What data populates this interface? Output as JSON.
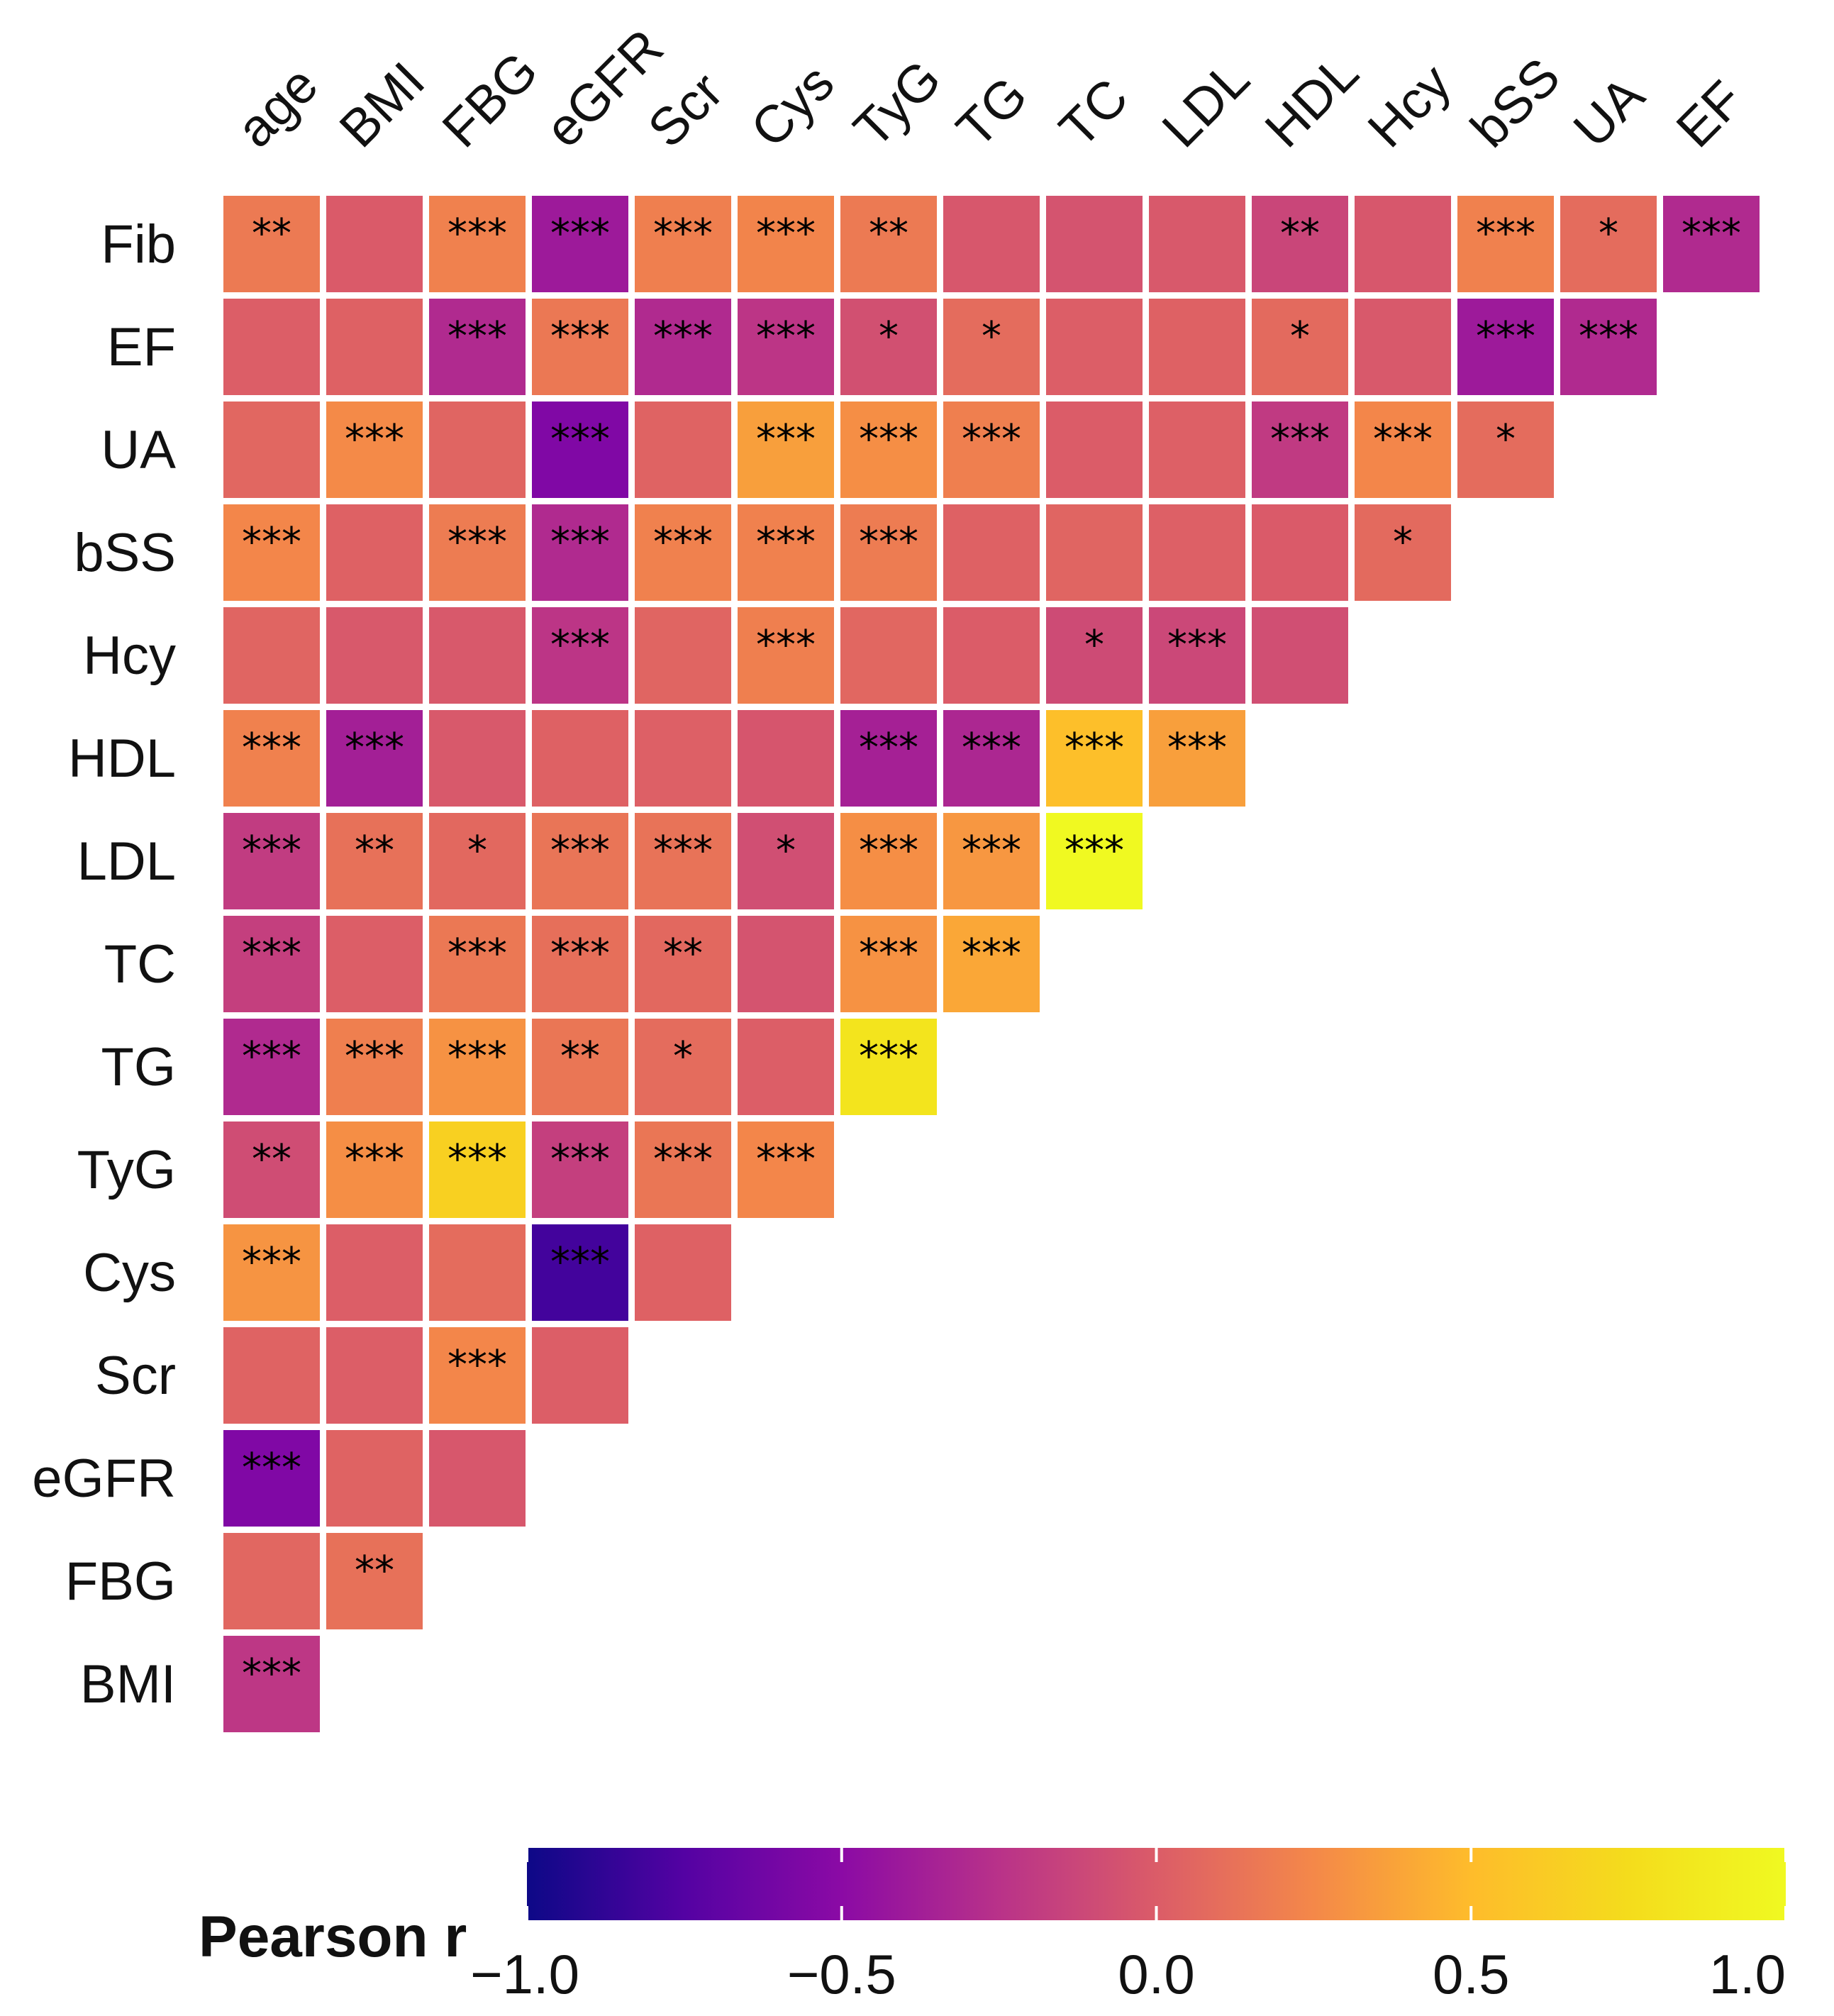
{
  "chart_data": {
    "type": "heatmap",
    "title": "",
    "x_labels": [
      "age",
      "BMI",
      "FBG",
      "eGFR",
      "Scr",
      "Cys",
      "TyG",
      "TG",
      "TC",
      "LDL",
      "HDL",
      "Hcy",
      "bSS",
      "UA",
      "EF"
    ],
    "y_labels": [
      "Fib",
      "EF",
      "UA",
      "bSS",
      "Hcy",
      "HDL",
      "LDL",
      "TC",
      "TG",
      "TyG",
      "Cys",
      "Scr",
      "eGFR",
      "FBG",
      "BMI"
    ],
    "values": [
      [
        0.17,
        -0.01,
        0.21,
        -0.4,
        0.2,
        0.23,
        0.17,
        -0.03,
        -0.05,
        -0.02,
        -0.13,
        -0.03,
        0.21,
        0.09,
        -0.3
      ],
      [
        0.01,
        0.03,
        -0.3,
        0.16,
        -0.3,
        -0.23,
        -0.07,
        0.09,
        0.01,
        0.03,
        0.08,
        -0.02,
        -0.4,
        -0.3,
        null
      ],
      [
        0.06,
        0.26,
        0.05,
        -0.55,
        0.04,
        0.36,
        0.28,
        0.2,
        0.0,
        0.02,
        -0.2,
        0.24,
        0.09,
        null,
        null
      ],
      [
        0.24,
        0.03,
        0.18,
        -0.3,
        0.21,
        0.21,
        0.18,
        0.03,
        0.05,
        0.02,
        -0.01,
        0.08,
        null,
        null,
        null
      ],
      [
        0.05,
        -0.02,
        -0.02,
        -0.23,
        0.05,
        0.2,
        0.06,
        0.0,
        -0.1,
        -0.12,
        -0.08,
        null,
        null,
        null,
        null
      ],
      [
        0.21,
        -0.37,
        -0.02,
        0.03,
        0.02,
        -0.04,
        -0.36,
        -0.32,
        0.52,
        0.36,
        null,
        null,
        null,
        null,
        null
      ],
      [
        -0.19,
        0.12,
        0.07,
        0.14,
        0.13,
        -0.08,
        0.28,
        0.32,
        1.0,
        null,
        null,
        null,
        null,
        null,
        null
      ],
      [
        -0.17,
        0.01,
        0.16,
        0.11,
        0.07,
        -0.05,
        0.3,
        0.4,
        null,
        null,
        null,
        null,
        null,
        null,
        null
      ],
      [
        -0.3,
        0.2,
        0.3,
        0.15,
        0.09,
        0.01,
        0.82,
        null,
        null,
        null,
        null,
        null,
        null,
        null,
        null
      ],
      [
        -0.09,
        0.28,
        0.66,
        -0.17,
        0.15,
        0.24,
        null,
        null,
        null,
        null,
        null,
        null,
        null,
        null,
        null
      ],
      [
        0.31,
        0.01,
        0.09,
        -0.81,
        0.03,
        null,
        null,
        null,
        null,
        null,
        null,
        null,
        null,
        null,
        null
      ],
      [
        0.04,
        0.01,
        0.24,
        0.01,
        null,
        null,
        null,
        null,
        null,
        null,
        null,
        null,
        null,
        null,
        null
      ],
      [
        -0.55,
        0.04,
        -0.03,
        null,
        null,
        null,
        null,
        null,
        null,
        null,
        null,
        null,
        null,
        null,
        null
      ],
      [
        0.06,
        0.12,
        null,
        null,
        null,
        null,
        null,
        null,
        null,
        null,
        null,
        null,
        null,
        null,
        null
      ],
      [
        -0.22,
        null,
        null,
        null,
        null,
        null,
        null,
        null,
        null,
        null,
        null,
        null,
        null,
        null,
        null
      ]
    ],
    "significance": [
      [
        "**",
        "",
        "***",
        "***",
        "***",
        "***",
        "**",
        "",
        "",
        "",
        "**",
        "",
        "***",
        "*",
        "***"
      ],
      [
        "",
        "",
        "***",
        "***",
        "***",
        "***",
        "*",
        "*",
        "",
        "",
        "*",
        "",
        "***",
        "***",
        null
      ],
      [
        "",
        "***",
        "",
        "***",
        "",
        "***",
        "***",
        "***",
        "",
        "",
        "***",
        "***",
        "*",
        null,
        null
      ],
      [
        "***",
        "",
        "***",
        "***",
        "***",
        "***",
        "***",
        "",
        "",
        "",
        "",
        "*",
        null,
        null,
        null
      ],
      [
        "",
        "",
        "",
        "***",
        "",
        "***",
        "",
        "",
        "*",
        "***",
        "",
        null,
        null,
        null,
        null
      ],
      [
        "***",
        "***",
        "",
        "",
        "",
        "",
        "***",
        "***",
        "***",
        "***",
        null,
        null,
        null,
        null,
        null
      ],
      [
        "***",
        "**",
        "*",
        "***",
        "***",
        "*",
        "***",
        "***",
        "***",
        null,
        null,
        null,
        null,
        null,
        null
      ],
      [
        "***",
        "",
        "***",
        "***",
        "**",
        "",
        "***",
        "***",
        null,
        null,
        null,
        null,
        null,
        null,
        null
      ],
      [
        "***",
        "***",
        "***",
        "**",
        "*",
        "",
        "***",
        null,
        null,
        null,
        null,
        null,
        null,
        null,
        null
      ],
      [
        "**",
        "***",
        "***",
        "***",
        "***",
        "***",
        null,
        null,
        null,
        null,
        null,
        null,
        null,
        null,
        null
      ],
      [
        "***",
        "",
        "",
        "***",
        "",
        null,
        null,
        null,
        null,
        null,
        null,
        null,
        null,
        null,
        null
      ],
      [
        "",
        "",
        "***",
        "",
        null,
        null,
        null,
        null,
        null,
        null,
        null,
        null,
        null,
        null,
        null
      ],
      [
        "***",
        "",
        "",
        null,
        null,
        null,
        null,
        null,
        null,
        null,
        null,
        null,
        null,
        null,
        null
      ],
      [
        "",
        "**",
        null,
        null,
        null,
        null,
        null,
        null,
        null,
        null,
        null,
        null,
        null,
        null,
        null
      ],
      [
        "***",
        null,
        null,
        null,
        null,
        null,
        null,
        null,
        null,
        null,
        null,
        null,
        null,
        null,
        null
      ]
    ],
    "colorbar": {
      "label": "Pearson r",
      "range": [
        -1.0,
        1.0
      ],
      "ticks": [
        -1.0,
        -0.5,
        0.0,
        0.5,
        1.0
      ],
      "tick_labels": [
        "−1.0",
        "−0.5",
        "0.0",
        "0.5",
        "1.0"
      ],
      "colormap": "plasma",
      "placement": "bottom"
    },
    "grid": false
  }
}
